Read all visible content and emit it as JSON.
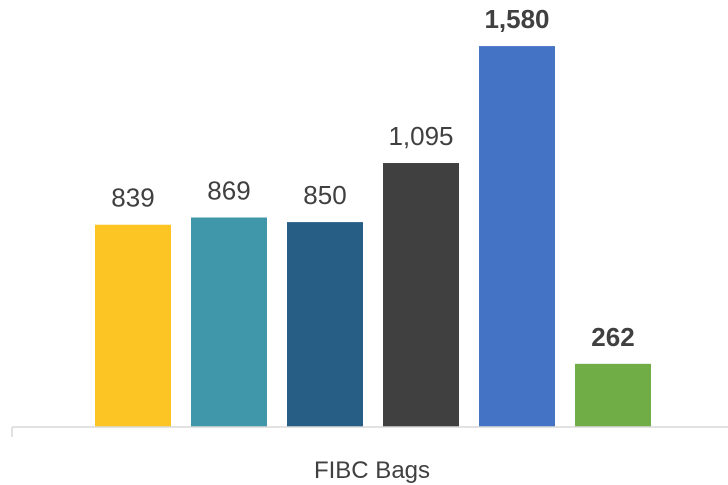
{
  "chart_data": {
    "type": "bar",
    "categories": [
      "FIBC Bags"
    ],
    "series": [
      {
        "values": [
          839
        ],
        "color": "#FDC524",
        "label_bold": false
      },
      {
        "values": [
          869
        ],
        "color": "#4097AA",
        "label_bold": false
      },
      {
        "values": [
          850
        ],
        "color": "#265E86",
        "label_bold": false
      },
      {
        "values": [
          1095
        ],
        "color": "#404040",
        "label_bold": false
      },
      {
        "values": [
          1580
        ],
        "color": "#4472C4",
        "label_bold": true
      },
      {
        "values": [
          262
        ],
        "color": "#70AD47",
        "label_bold": true
      }
    ],
    "data_labels": [
      "839",
      "869",
      "850",
      "1,095",
      "1,580",
      "262"
    ],
    "xlabel": "FIBC Bags",
    "ylim": [
      0,
      1680
    ],
    "grid": false,
    "legend": "none"
  }
}
